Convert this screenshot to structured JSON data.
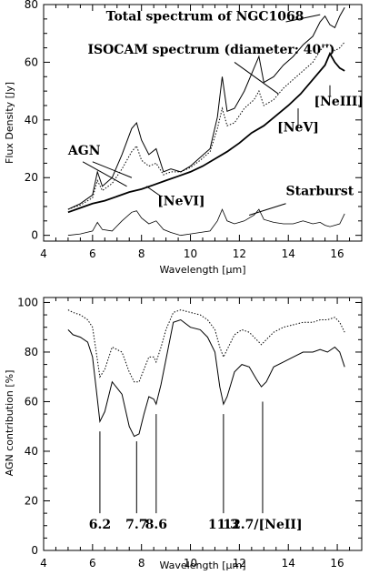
{
  "chart_data": [
    {
      "type": "line",
      "xlabel": "Wavelength [μm]",
      "ylabel": "Flux Density [Jy]",
      "xlim": [
        4,
        17
      ],
      "ylim": [
        -2,
        80
      ],
      "xticks": [
        "4",
        "6",
        "8",
        "10",
        "12",
        "14",
        "16"
      ],
      "yticks": [
        "0",
        "20",
        "40",
        "60",
        "80"
      ],
      "series": [
        {
          "name": "Total spectrum of NGC1068",
          "style": "solid",
          "x": [
            5.0,
            5.5,
            6.0,
            6.2,
            6.4,
            6.8,
            7.2,
            7.6,
            7.8,
            8.0,
            8.3,
            8.6,
            8.9,
            9.2,
            9.6,
            10.0,
            10.4,
            10.8,
            11.1,
            11.3,
            11.5,
            11.8,
            12.2,
            12.6,
            12.8,
            13.0,
            13.4,
            13.8,
            14.2,
            14.6,
            15.0,
            15.3,
            15.5,
            15.7,
            15.9,
            16.1,
            16.3
          ],
          "y": [
            9,
            11,
            14,
            22,
            17,
            20,
            28,
            37,
            39,
            33,
            28,
            30,
            22,
            23,
            22,
            24,
            27,
            30,
            41,
            55,
            43,
            44,
            50,
            58,
            62,
            53,
            55,
            59,
            62,
            66,
            69,
            74,
            76,
            73,
            72,
            76,
            79
          ]
        },
        {
          "name": "ISOCAM spectrum (diameter: 40'')",
          "style": "dotted",
          "x": [
            5.0,
            5.5,
            6.0,
            6.2,
            6.4,
            6.8,
            7.2,
            7.6,
            7.8,
            8.0,
            8.3,
            8.6,
            8.9,
            9.2,
            9.6,
            10.0,
            10.4,
            10.8,
            11.1,
            11.3,
            11.5,
            11.8,
            12.2,
            12.6,
            12.8,
            13.0,
            13.4,
            13.8,
            14.2,
            14.6,
            15.0,
            15.3,
            15.5,
            15.7,
            15.9,
            16.1,
            16.3
          ],
          "y": [
            9,
            10.5,
            13,
            19,
            15.5,
            18,
            23,
            29,
            31,
            26,
            24,
            25,
            21,
            22,
            22,
            23.5,
            26,
            29,
            37,
            44,
            38,
            39,
            44,
            47,
            50,
            45,
            47,
            51,
            54,
            57,
            60,
            64,
            66,
            66,
            64,
            65,
            67
          ]
        },
        {
          "name": "AGN",
          "style": "solid-thick",
          "x": [
            5.0,
            5.5,
            6.0,
            6.5,
            7.0,
            7.5,
            8.0,
            8.5,
            9.0,
            9.5,
            10.0,
            10.5,
            11.0,
            11.5,
            12.0,
            12.5,
            13.0,
            13.5,
            14.0,
            14.5,
            15.0,
            15.5,
            15.7,
            15.9,
            16.1,
            16.3
          ],
          "y": [
            8,
            9.5,
            11,
            12,
            13.5,
            15,
            16,
            17.5,
            19,
            20.5,
            22,
            24,
            26.5,
            29,
            32,
            35.5,
            38,
            41.5,
            45,
            49,
            54,
            59,
            63,
            60,
            58,
            57
          ]
        },
        {
          "name": "Starburst",
          "style": "thin",
          "x": [
            5.0,
            5.5,
            6.0,
            6.2,
            6.4,
            6.8,
            7.2,
            7.6,
            7.8,
            8.0,
            8.3,
            8.6,
            8.9,
            9.2,
            9.6,
            10.0,
            10.4,
            10.8,
            11.1,
            11.3,
            11.5,
            11.8,
            12.2,
            12.6,
            12.8,
            13.0,
            13.4,
            13.8,
            14.2,
            14.6,
            15.0,
            15.3,
            15.5,
            15.7,
            15.9,
            16.1,
            16.3
          ],
          "y": [
            0,
            0.5,
            1.5,
            4.5,
            2,
            1.5,
            5,
            8,
            8.5,
            6,
            4,
            5,
            2,
            1,
            0,
            0.5,
            1,
            1.5,
            5,
            9,
            5,
            4,
            5,
            7,
            9,
            5.5,
            4.5,
            4,
            4,
            5,
            4,
            4.5,
            3.5,
            3,
            3.5,
            4,
            7.5
          ]
        }
      ],
      "annotations": [
        {
          "text": "Total spectrum  of  NGC1068",
          "x": 6.55,
          "y": 74.5
        },
        {
          "text": "ISOCAM spectrum  (diameter: 40'')",
          "x": 5.8,
          "y": 63
        },
        {
          "text": "AGN",
          "x": 5.0,
          "y": 28
        },
        {
          "text": "[NeVI]",
          "x": 8.65,
          "y": 10.5
        },
        {
          "text": "Starburst",
          "x": 13.9,
          "y": 14
        },
        {
          "text": "[NeIII]",
          "x": 15.05,
          "y": 45
        },
        {
          "text": "[NeV]",
          "x": 13.55,
          "y": 36
        }
      ]
    },
    {
      "type": "line",
      "xlabel": "Wavelength [μm]",
      "ylabel": "AGN contribution [%]",
      "xlim": [
        4,
        17
      ],
      "ylim": [
        0,
        102
      ],
      "xticks": [
        "4",
        "6",
        "8",
        "10",
        "12",
        "14",
        "16"
      ],
      "yticks": [
        "0",
        "20",
        "40",
        "60",
        "80",
        "100"
      ],
      "series": [
        {
          "style": "solid",
          "x": [
            5.0,
            5.2,
            5.5,
            5.8,
            6.0,
            6.15,
            6.3,
            6.5,
            6.8,
            7.2,
            7.5,
            7.7,
            7.9,
            8.1,
            8.3,
            8.5,
            8.6,
            8.8,
            9.0,
            9.3,
            9.6,
            10.0,
            10.4,
            10.7,
            11.0,
            11.2,
            11.35,
            11.5,
            11.8,
            12.1,
            12.4,
            12.7,
            12.9,
            13.1,
            13.4,
            13.8,
            14.2,
            14.6,
            15.0,
            15.3,
            15.6,
            15.9,
            16.1,
            16.3
          ],
          "y": [
            89,
            87,
            86,
            84,
            78,
            65,
            52,
            56,
            68,
            63,
            50,
            46,
            47,
            55,
            62,
            61,
            59,
            67,
            77,
            92,
            93,
            90,
            89,
            86,
            80,
            66,
            59,
            62,
            72,
            75,
            74,
            69,
            66,
            68,
            74,
            76,
            78,
            80,
            80,
            81,
            80,
            82,
            80,
            74
          ]
        },
        {
          "style": "dotted",
          "x": [
            5.0,
            5.2,
            5.5,
            5.8,
            6.0,
            6.15,
            6.3,
            6.5,
            6.8,
            7.2,
            7.5,
            7.7,
            7.9,
            8.1,
            8.3,
            8.5,
            8.6,
            8.8,
            9.0,
            9.3,
            9.6,
            10.0,
            10.4,
            10.7,
            11.0,
            11.2,
            11.35,
            11.5,
            11.8,
            12.1,
            12.4,
            12.7,
            12.9,
            13.1,
            13.4,
            13.8,
            14.2,
            14.6,
            15.0,
            15.3,
            15.6,
            15.9,
            16.1,
            16.3
          ],
          "y": [
            97,
            96,
            95,
            93,
            90,
            80,
            70,
            73,
            82,
            80,
            72,
            68,
            68,
            73,
            78,
            78,
            76,
            82,
            89,
            96,
            97,
            96,
            95,
            93,
            89,
            82,
            78,
            81,
            87,
            89,
            88,
            85,
            83,
            85,
            88,
            90,
            91,
            92,
            92,
            93,
            93,
            94,
            92,
            88
          ]
        }
      ],
      "feature_markers": [
        {
          "label": "6.2",
          "x": 6.3,
          "y_top": 48,
          "y_bottom": 15
        },
        {
          "label": "7.7",
          "x": 7.8,
          "y_top": 44,
          "y_bottom": 15
        },
        {
          "label": "8.6",
          "x": 8.6,
          "y_top": 55,
          "y_bottom": 15
        },
        {
          "label": "11.3",
          "x": 11.35,
          "y_top": 55,
          "y_bottom": 15
        },
        {
          "label": "12.7/[NeII]",
          "x": 12.95,
          "y_top": 60,
          "y_bottom": 15
        }
      ]
    }
  ]
}
